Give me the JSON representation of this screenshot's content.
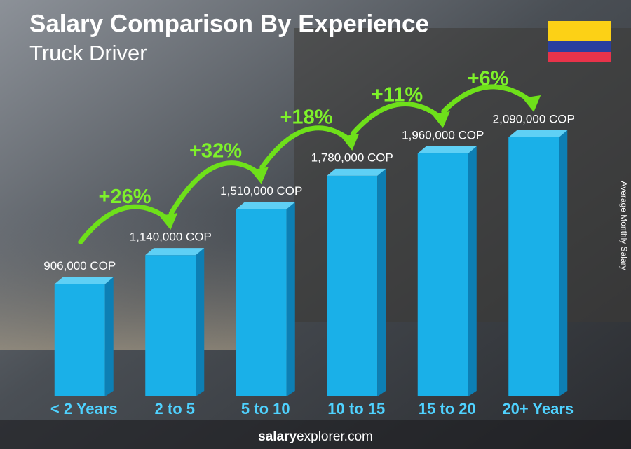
{
  "chart_data": {
    "type": "bar",
    "title": "Salary Comparison By Experience",
    "subtitle": "Truck Driver",
    "y_label": "Average Monthly Salary",
    "categories": [
      "< 2 Years",
      "2 to 5",
      "5 to 10",
      "10 to 15",
      "15 to 20",
      "20+ Years"
    ],
    "values": [
      906000,
      1140000,
      1510000,
      1780000,
      1960000,
      2090000
    ],
    "value_labels": [
      "906,000 COP",
      "1,140,000 COP",
      "1,510,000 COP",
      "1,780,000 COP",
      "1,960,000 COP",
      "2,090,000 COP"
    ],
    "changes": [
      "+26%",
      "+32%",
      "+18%",
      "+11%",
      "+6%"
    ],
    "color": "#1ab0e8",
    "source": {
      "bold": "salary",
      "rest": "explorer.com"
    }
  }
}
